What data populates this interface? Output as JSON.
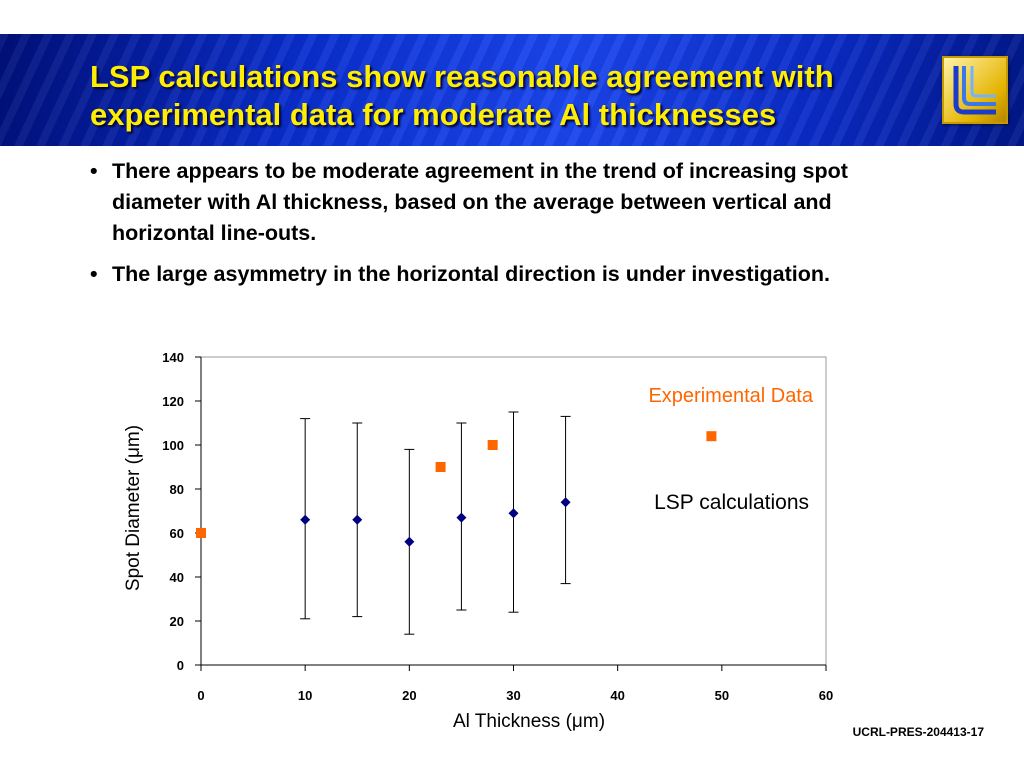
{
  "slide": {
    "title": "LSP calculations show reasonable agreement with experimental data for moderate Al thicknesses",
    "bullets": [
      "There appears to be moderate agreement in the trend of increasing spot diameter with Al thickness, based on the average between vertical and horizontal line-outs.",
      "The large asymmetry in the horizontal direction is under investigation."
    ],
    "bullet_glyph": "•",
    "footer": "UCRL-PRES-204413-17"
  },
  "colors": {
    "title": "#ffee00",
    "experimental": "#ff6600",
    "lsp": "#000080"
  },
  "chart_data": {
    "type": "scatter",
    "xlabel": "Al Thickness (μm)",
    "ylabel": "Spot Diameter (μm)",
    "xlim": [
      0,
      60
    ],
    "ylim": [
      0,
      140
    ],
    "xticks": [
      0,
      10,
      20,
      30,
      40,
      50,
      60
    ],
    "yticks": [
      0,
      20,
      40,
      60,
      80,
      100,
      120,
      140
    ],
    "grid": false,
    "series": [
      {
        "name": "Experimental Data",
        "marker": "square",
        "color": "#ff6600",
        "points": [
          {
            "x": 0,
            "y": 60
          },
          {
            "x": 23,
            "y": 90
          },
          {
            "x": 28,
            "y": 100
          },
          {
            "x": 49,
            "y": 104
          }
        ]
      },
      {
        "name": "LSP calculations",
        "marker": "diamond",
        "color": "#000080",
        "points": [
          {
            "x": 10,
            "y": 66,
            "err_low": 21,
            "err_high": 112
          },
          {
            "x": 15,
            "y": 66,
            "err_low": 22,
            "err_high": 110
          },
          {
            "x": 20,
            "y": 56,
            "err_low": 14,
            "err_high": 98
          },
          {
            "x": 25,
            "y": 67,
            "err_low": 25,
            "err_high": 110
          },
          {
            "x": 30,
            "y": 69,
            "err_low": 24,
            "err_high": 115
          },
          {
            "x": 35,
            "y": 74,
            "err_low": 37,
            "err_high": 113
          }
        ]
      }
    ]
  }
}
